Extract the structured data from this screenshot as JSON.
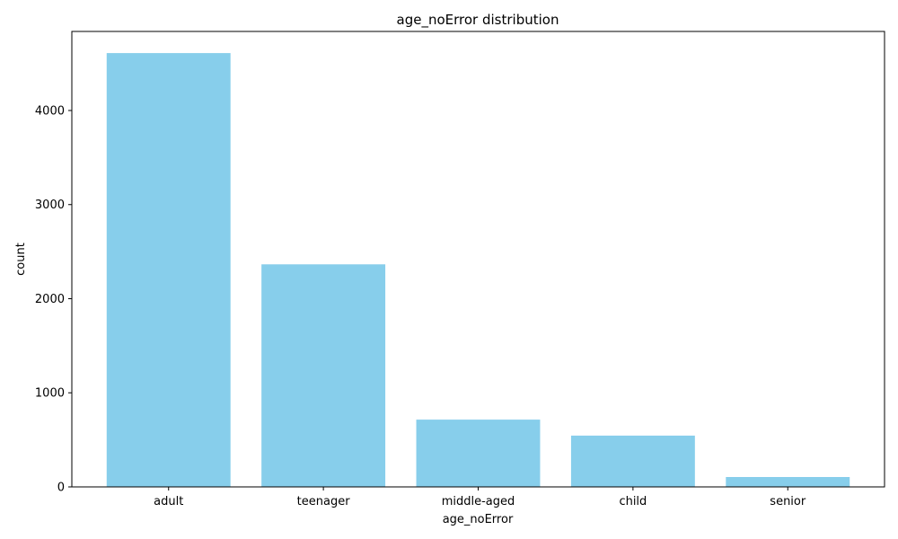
{
  "chart_data": {
    "type": "bar",
    "title": "age_noError distribution",
    "xlabel": "age_noError",
    "ylabel": "count",
    "categories": [
      "adult",
      "teenager",
      "middle-aged",
      "child",
      "senior"
    ],
    "values": [
      4610,
      2365,
      715,
      545,
      105
    ],
    "ylim": [
      0,
      4840
    ],
    "yticks": [
      0,
      1000,
      2000,
      3000,
      4000
    ],
    "bar_color": "#87ceeb",
    "grid": false,
    "legend": "none"
  }
}
